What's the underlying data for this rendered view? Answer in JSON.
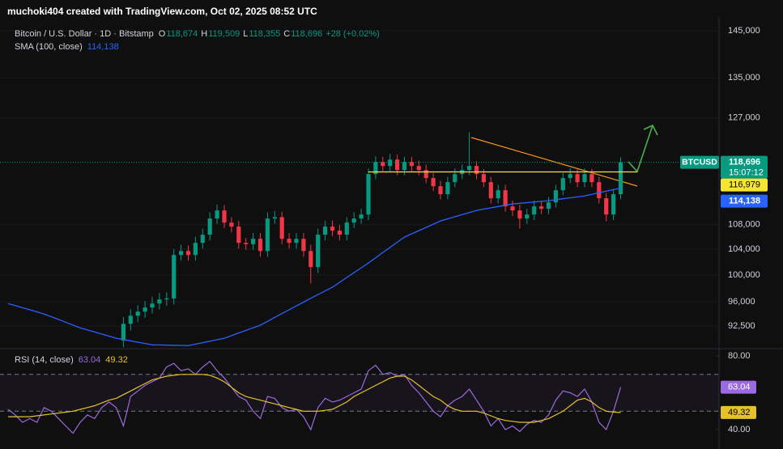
{
  "header": {
    "text": "muchoki404 created with TradingView.com, Oct 02, 2025 08:52 UTC"
  },
  "chart_data": [
    {
      "type": "candlestick",
      "title": "Bitcoin / U.S. Dollar · 1D · Bitstamp",
      "ohlc_legend": {
        "names": [
          "O",
          "H",
          "L",
          "C"
        ],
        "values": [
          118674,
          119509,
          118355,
          118696
        ],
        "value_labels": [
          "118,674",
          "119,509",
          "118,355",
          "118,696"
        ],
        "change": "+28 (+0.02%)"
      },
      "open": [
        null,
        null,
        null,
        null,
        null,
        null,
        null,
        null,
        null,
        null,
        null,
        null,
        null,
        null,
        null,
        null,
        90500,
        92840,
        93990,
        94580,
        95170,
        95750,
        96340,
        96500,
        103090,
        103720,
        103090,
        105010,
        106320,
        108970,
        110320,
        108300,
        107640,
        105010,
        104800,
        105660,
        103720,
        108970,
        109200,
        105660,
        105010,
        105660,
        103720,
        101210,
        106320,
        107640,
        106980,
        106320,
        108300,
        108970,
        109640,
        116590,
        118770,
        118040,
        119200,
        117320,
        118770,
        118040,
        117320,
        115890,
        114460,
        113070,
        115170,
        116590,
        117320,
        118040,
        116590,
        115170,
        112380,
        113770,
        111000,
        110320,
        108970,
        109640,
        111000,
        110600,
        111680,
        113770,
        115890,
        116590,
        115170,
        116590,
        115170,
        112380,
        109640,
        113070
      ],
      "high": [
        null,
        null,
        null,
        null,
        null,
        null,
        null,
        null,
        null,
        null,
        null,
        null,
        null,
        null,
        null,
        null,
        93800,
        94900,
        95500,
        96100,
        96700,
        97300,
        97400,
        104000,
        104700,
        104600,
        106000,
        107300,
        110000,
        111300,
        111200,
        109200,
        108600,
        105800,
        106600,
        106600,
        110000,
        110200,
        110100,
        106600,
        106600,
        106600,
        104700,
        107300,
        108600,
        108600,
        107900,
        109200,
        110000,
        110600,
        117600,
        119800,
        119700,
        120200,
        120100,
        119700,
        119700,
        119000,
        118300,
        116800,
        115400,
        116100,
        117600,
        118300,
        124300,
        118900,
        117500,
        116100,
        114700,
        114700,
        112000,
        111300,
        110600,
        112000,
        112000,
        112600,
        114700,
        116800,
        117600,
        117500,
        117600,
        117500,
        116100,
        113300,
        114000,
        119600
      ],
      "low": [
        null,
        null,
        null,
        null,
        null,
        null,
        null,
        null,
        null,
        null,
        null,
        null,
        null,
        null,
        null,
        null,
        89600,
        91900,
        93100,
        93700,
        94300,
        94900,
        95400,
        95600,
        102200,
        102200,
        102200,
        104100,
        105400,
        108100,
        107400,
        106700,
        104100,
        103900,
        103900,
        102800,
        102800,
        108100,
        104800,
        104100,
        104100,
        102800,
        98700,
        100300,
        105400,
        106100,
        105400,
        105400,
        107400,
        108100,
        108700,
        115700,
        117100,
        117100,
        116400,
        116400,
        117100,
        116400,
        115000,
        113600,
        112200,
        112200,
        114300,
        115700,
        116400,
        115700,
        114300,
        111500,
        111500,
        110100,
        109400,
        107300,
        108100,
        108700,
        109700,
        109700,
        110800,
        112900,
        115000,
        114300,
        114300,
        114300,
        111500,
        108500,
        108700,
        112200
      ],
      "close": [
        null,
        null,
        null,
        null,
        null,
        null,
        null,
        null,
        null,
        null,
        null,
        null,
        null,
        null,
        null,
        null,
        92840,
        93990,
        94580,
        95170,
        95750,
        96340,
        96500,
        103090,
        103720,
        103090,
        105010,
        106320,
        108970,
        110320,
        108300,
        107640,
        105010,
        104800,
        105660,
        103720,
        108970,
        109200,
        105660,
        105010,
        105660,
        103720,
        101210,
        106320,
        107640,
        106980,
        106320,
        108300,
        108970,
        109640,
        116590,
        118770,
        118040,
        119200,
        117320,
        118770,
        118040,
        117320,
        115890,
        114460,
        113070,
        115170,
        116590,
        117320,
        118040,
        116590,
        115170,
        112380,
        113770,
        111000,
        110320,
        108970,
        109640,
        111000,
        110600,
        111680,
        113770,
        115890,
        116590,
        115170,
        116590,
        115170,
        112380,
        109640,
        113070,
        118696
      ],
      "up_color": "#089981",
      "down_color": "#f23645",
      "series": [
        {
          "name": "SMA (100, close)",
          "color": "#2962ff",
          "last_value": 114138,
          "last_label": "114,138",
          "values": [
            95750,
            95450,
            95150,
            94840,
            94540,
            94240,
            93850,
            93450,
            93060,
            92660,
            92270,
            91980,
            91690,
            91400,
            91110,
            90820,
            90640,
            90460,
            90280,
            90100,
            89920,
            89900,
            89880,
            89850,
            89830,
            89810,
            90010,
            90210,
            90420,
            90620,
            90820,
            91180,
            91550,
            91910,
            92280,
            92640,
            93190,
            93750,
            94300,
            94850,
            95400,
            95950,
            96510,
            97060,
            97600,
            98140,
            98880,
            99620,
            100360,
            101100,
            101840,
            102660,
            103480,
            104290,
            105110,
            105930,
            106460,
            106980,
            107510,
            108040,
            108570,
            108920,
            109270,
            109620,
            109970,
            110320,
            110540,
            110760,
            110970,
            111190,
            111410,
            111520,
            111630,
            111740,
            111850,
            111960,
            112130,
            112290,
            112460,
            112620,
            112790,
            113060,
            113330,
            113600,
            113870,
            114138
          ]
        }
      ],
      "last_price": {
        "symbol": "BTCUSD",
        "value": 118696,
        "label": "118,696",
        "countdown": "15:07:12",
        "color": "#089981"
      },
      "level": {
        "value": 116979,
        "label": "116,979",
        "color": "#f5e431"
      },
      "log_scale": true,
      "grid": true,
      "ylim": [
        89500,
        147900
      ],
      "yticks": [
        {
          "value": 145000,
          "label": "145,000"
        },
        {
          "value": 135000,
          "label": "135,000"
        },
        {
          "value": 127000,
          "label": "127,000"
        },
        {
          "value": 108000,
          "label": "108,000"
        },
        {
          "value": 104000,
          "label": "104,000"
        },
        {
          "value": 100000,
          "label": "100,000"
        },
        {
          "value": 96000,
          "label": "96,000"
        },
        {
          "value": 92500,
          "label": "92,500"
        }
      ]
    },
    {
      "type": "line",
      "title": "RSI (14, close)",
      "series": [
        {
          "color": "#9b6ae0",
          "last_value": 63.04,
          "values": [
            51,
            48,
            44,
            46,
            44,
            52,
            50,
            46,
            42,
            38,
            44,
            48,
            46,
            52,
            55,
            52,
            42,
            58,
            61,
            64,
            66,
            68,
            74,
            76,
            72,
            73,
            70,
            74,
            77,
            72,
            68,
            63,
            58,
            56,
            50,
            46,
            58,
            57,
            52,
            50,
            51,
            47,
            40,
            52,
            57,
            55,
            56,
            58,
            60,
            62,
            72,
            75,
            70,
            71,
            69,
            70,
            64,
            60,
            55,
            50,
            47,
            53,
            56,
            58,
            62,
            56,
            50,
            42,
            46,
            40,
            42,
            39,
            43,
            45,
            44,
            48,
            56,
            61,
            60,
            58,
            62,
            55,
            44,
            40,
            50,
            63.04
          ]
        },
        {
          "color": "#e6c229",
          "last_value": 49.32,
          "values": [
            47,
            47,
            47,
            47,
            47.5,
            48,
            48.5,
            49,
            49.5,
            50,
            51,
            52,
            53,
            54.5,
            56,
            57,
            59,
            61,
            63,
            65,
            67,
            68,
            69,
            69.5,
            70,
            70,
            70,
            70,
            69.5,
            68,
            66,
            63,
            60,
            58,
            57,
            56,
            55,
            54,
            53,
            52,
            51,
            50,
            50,
            50,
            50.5,
            51,
            53,
            55,
            58,
            60,
            62,
            64,
            66,
            68,
            69,
            69,
            67,
            64,
            61,
            58,
            56,
            53,
            51,
            50,
            50,
            50,
            49,
            47.5,
            46,
            45,
            44.5,
            44,
            44,
            44,
            45,
            46,
            48,
            50,
            53,
            56,
            57,
            55,
            52,
            50,
            49.5,
            49.32
          ]
        }
      ],
      "bands": [
        70,
        50
      ],
      "ylim": [
        29.5,
        83.5
      ],
      "yticks": [
        {
          "value": 80,
          "label": "80.00"
        },
        {
          "value": 40,
          "label": "40.00"
        }
      ]
    }
  ]
}
